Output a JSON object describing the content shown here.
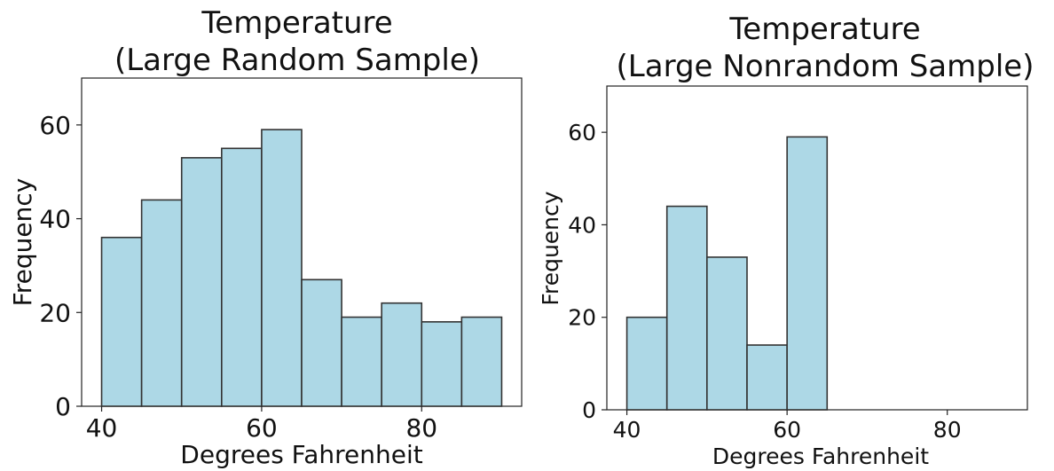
{
  "chart_data": [
    {
      "type": "bar",
      "title_lines": [
        "Temperature",
        "(Large Random Sample)"
      ],
      "xlabel": "Degrees Fahrenheit",
      "ylabel": "Frequency",
      "bin_edges": [
        40,
        45,
        50,
        55,
        60,
        65,
        70,
        75,
        80,
        85,
        90
      ],
      "values": [
        36,
        44,
        53,
        55,
        59,
        27,
        19,
        22,
        18,
        19
      ],
      "xticks": [
        40,
        60,
        80
      ],
      "yticks": [
        0,
        20,
        40,
        60
      ],
      "xlim": [
        37.5,
        92.5
      ],
      "ylim": [
        0,
        70
      ],
      "bar_color": "#add8e6",
      "edge_color": "#333333"
    },
    {
      "type": "bar",
      "title_lines": [
        "Temperature",
        "(Large Nonrandom Sample)"
      ],
      "xlabel": "Degrees Fahrenheit",
      "ylabel": "Frequency",
      "bin_edges": [
        40,
        45,
        50,
        55,
        60,
        65
      ],
      "values": [
        20,
        44,
        33,
        14,
        59
      ],
      "xticks": [
        40,
        60,
        80
      ],
      "yticks": [
        0,
        20,
        40,
        60
      ],
      "xlim": [
        37.5,
        90
      ],
      "ylim": [
        0,
        70
      ],
      "bar_color": "#add8e6",
      "edge_color": "#333333"
    }
  ]
}
